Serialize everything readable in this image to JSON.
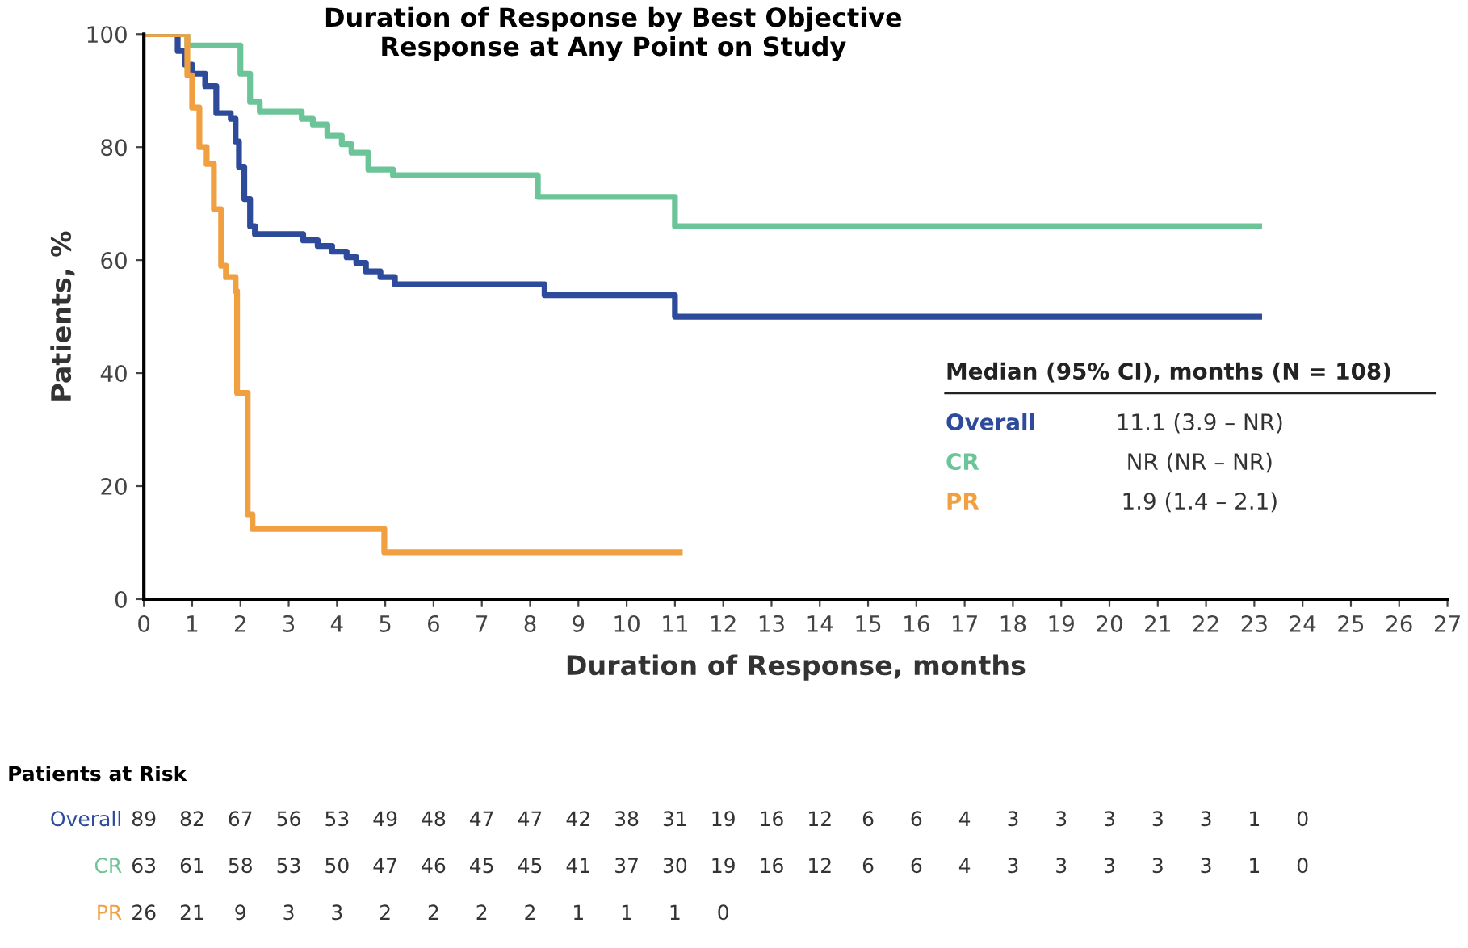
{
  "chart_data": {
    "type": "step",
    "title": "Duration of Response by Best Objective\nResponse at Any Point on Study",
    "xlabel": "Duration of Response, months",
    "ylabel": "Patients, %",
    "xlim": [
      0,
      27
    ],
    "xticks": [
      0,
      1,
      2,
      3,
      4,
      5,
      6,
      7,
      8,
      9,
      10,
      11,
      12,
      13,
      14,
      15,
      16,
      17,
      18,
      19,
      20,
      21,
      22,
      23,
      24,
      25,
      26,
      27
    ],
    "ylim": [
      0,
      100
    ],
    "yticks": [
      0,
      20,
      40,
      60,
      80,
      100
    ],
    "grid": false,
    "marker": "none",
    "line_style": "solid",
    "series": [
      {
        "name": "Overall",
        "color": "#2e4a9a",
        "x": [
          0,
          0.7,
          0.85,
          1.0,
          1.27,
          1.5,
          1.8,
          1.9,
          1.97,
          2.08,
          2.2,
          2.3,
          3.3,
          3.6,
          3.9,
          4.2,
          4.4,
          4.6,
          4.9,
          5.2,
          8.3,
          11.0,
          23.1
        ],
        "values": [
          100,
          97,
          94.6,
          93,
          90.8,
          86,
          85,
          81,
          76.5,
          70.8,
          66,
          64.6,
          63.5,
          62.5,
          61.5,
          60.5,
          59.5,
          58,
          57,
          55.7,
          53.8,
          50,
          50
        ]
      },
      {
        "name": "CR",
        "color": "#6cc598",
        "x": [
          0,
          0.9,
          1.87,
          2.0,
          2.2,
          2.4,
          3.27,
          3.5,
          3.8,
          4.1,
          4.3,
          4.65,
          5.16,
          8.16,
          11.0,
          23.1
        ],
        "values": [
          100,
          98,
          98,
          93,
          88,
          86.3,
          85,
          84,
          82,
          80.5,
          79,
          76,
          75,
          71.2,
          66,
          66
        ]
      },
      {
        "name": "PR",
        "color": "#f0a040",
        "x": [
          0,
          0.8,
          0.9,
          1.0,
          1.15,
          1.3,
          1.45,
          1.6,
          1.7,
          1.9,
          1.93,
          2.15,
          2.25,
          4.98,
          11.1
        ],
        "values": [
          100,
          100,
          92.7,
          87,
          80,
          77,
          69,
          59,
          57,
          54.5,
          36.5,
          15,
          12.4,
          8.3,
          8.3
        ]
      }
    ],
    "annotations": [
      "Median (95% CI), months (N = 108)",
      "11.1 (3.9 – NR)",
      "NR (NR – NR)",
      "1.9 (1.4 – 2.1)",
      "Patients at Risk",
      "89 82 67 56 53 49 48 47 47 42 38 31 19 16 12 6 6 4 3 3 3 3 3 1 0",
      "63 61 58 53 50 47 46 45 45 41 37 30 19 16 12 6 6 4 3 3 3 3 3 1 0",
      "26 21 9 3 3 2 2 2 2 1 1 1 0"
    ]
  }
}
